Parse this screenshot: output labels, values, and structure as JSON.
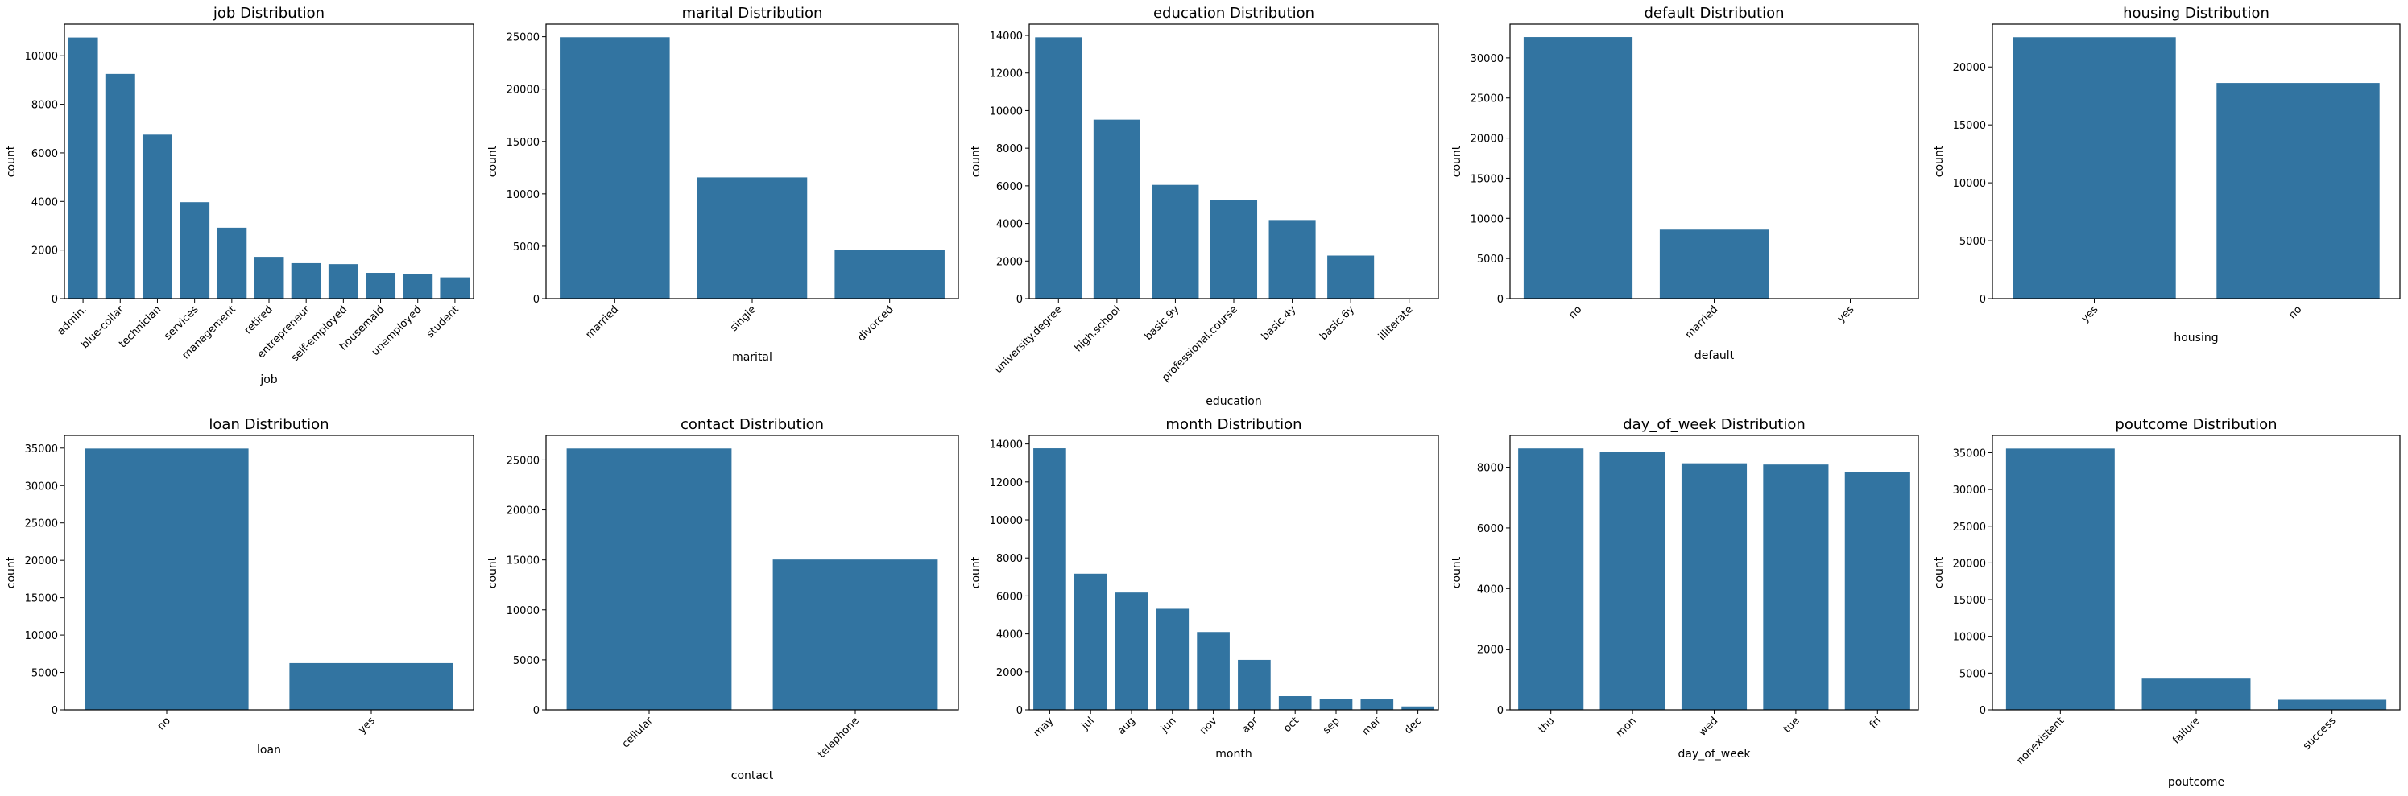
{
  "figure": {
    "bar_color": "#3274a1",
    "background": "#ffffff"
  },
  "chart_data": [
    {
      "type": "bar",
      "title": "job Distribution",
      "xlabel": "job",
      "ylabel": "count",
      "categories": [
        "admin.",
        "blue-collar",
        "technician",
        "services",
        "management",
        "retired",
        "entrepreneur",
        "self-employed",
        "housemaid",
        "unemployed",
        "student"
      ],
      "values": [
        10750,
        9250,
        6750,
        3970,
        2920,
        1720,
        1460,
        1420,
        1060,
        1010,
        875
      ],
      "ylim": [
        0,
        11300
      ],
      "yticks": [
        0,
        2000,
        4000,
        6000,
        8000,
        10000
      ],
      "rotate_xticks": true,
      "grid": false
    },
    {
      "type": "bar",
      "title": "marital Distribution",
      "xlabel": "marital",
      "ylabel": "count",
      "categories": [
        "married",
        "single",
        "divorced"
      ],
      "values": [
        24950,
        11570,
        4610
      ],
      "ylim": [
        0,
        26200
      ],
      "yticks": [
        0,
        5000,
        10000,
        15000,
        20000,
        25000
      ],
      "rotate_xticks": true,
      "grid": false
    },
    {
      "type": "bar",
      "title": "education Distribution",
      "xlabel": "education",
      "ylabel": "count",
      "categories": [
        "university.degree",
        "high.school",
        "basic.9y",
        "professional.course",
        "basic.4y",
        "basic.6y",
        "illiterate"
      ],
      "values": [
        13900,
        9520,
        6050,
        5240,
        4180,
        2290,
        18
      ],
      "ylim": [
        0,
        14600
      ],
      "yticks": [
        0,
        2000,
        4000,
        6000,
        8000,
        10000,
        12000,
        14000
      ],
      "rotate_xticks": true,
      "grid": false
    },
    {
      "type": "bar",
      "title": "default Distribution",
      "xlabel": "default",
      "ylabel": "count",
      "categories": [
        "no",
        "married",
        "yes"
      ],
      "values": [
        32590,
        8600,
        3
      ],
      "ylim": [
        0,
        34200
      ],
      "yticks": [
        0,
        5000,
        10000,
        15000,
        20000,
        25000,
        30000
      ],
      "rotate_xticks": true,
      "grid": false
    },
    {
      "type": "bar",
      "title": "housing Distribution",
      "xlabel": "housing",
      "ylabel": "count",
      "categories": [
        "yes",
        "no"
      ],
      "values": [
        22570,
        18620
      ],
      "ylim": [
        0,
        23700
      ],
      "yticks": [
        0,
        5000,
        10000,
        15000,
        20000
      ],
      "rotate_xticks": true,
      "grid": false
    },
    {
      "type": "bar",
      "title": "loan Distribution",
      "xlabel": "loan",
      "ylabel": "count",
      "categories": [
        "no",
        "yes"
      ],
      "values": [
        34940,
        6250
      ],
      "ylim": [
        0,
        36700
      ],
      "yticks": [
        0,
        5000,
        10000,
        15000,
        20000,
        25000,
        30000,
        35000
      ],
      "rotate_xticks": true,
      "grid": false
    },
    {
      "type": "bar",
      "title": "contact Distribution",
      "xlabel": "contact",
      "ylabel": "count",
      "categories": [
        "cellular",
        "telephone"
      ],
      "values": [
        26140,
        15040
      ],
      "ylim": [
        0,
        27450
      ],
      "yticks": [
        0,
        5000,
        10000,
        15000,
        20000,
        25000
      ],
      "rotate_xticks": true,
      "grid": false
    },
    {
      "type": "bar",
      "title": "month Distribution",
      "xlabel": "month",
      "ylabel": "count",
      "categories": [
        "may",
        "jul",
        "aug",
        "jun",
        "nov",
        "apr",
        "oct",
        "sep",
        "mar",
        "dec"
      ],
      "values": [
        13770,
        7170,
        6180,
        5320,
        4100,
        2630,
        720,
        570,
        550,
        180
      ],
      "ylim": [
        0,
        14450
      ],
      "yticks": [
        0,
        2000,
        4000,
        6000,
        8000,
        10000,
        12000,
        14000
      ],
      "rotate_xticks": true,
      "grid": false
    },
    {
      "type": "bar",
      "title": "day_of_week Distribution",
      "xlabel": "day_of_week",
      "ylabel": "count",
      "categories": [
        "thu",
        "mon",
        "wed",
        "tue",
        "fri"
      ],
      "values": [
        8620,
        8510,
        8130,
        8090,
        7830
      ],
      "ylim": [
        0,
        9050
      ],
      "yticks": [
        0,
        2000,
        4000,
        6000,
        8000
      ],
      "rotate_xticks": true,
      "grid": false
    },
    {
      "type": "bar",
      "title": "poutcome Distribution",
      "xlabel": "poutcome",
      "ylabel": "count",
      "categories": [
        "nonexistent",
        "failure",
        "success"
      ],
      "values": [
        35560,
        4250,
        1370
      ],
      "ylim": [
        0,
        37350
      ],
      "yticks": [
        0,
        5000,
        10000,
        15000,
        20000,
        25000,
        30000,
        35000
      ],
      "rotate_xticks": true,
      "grid": false
    }
  ]
}
